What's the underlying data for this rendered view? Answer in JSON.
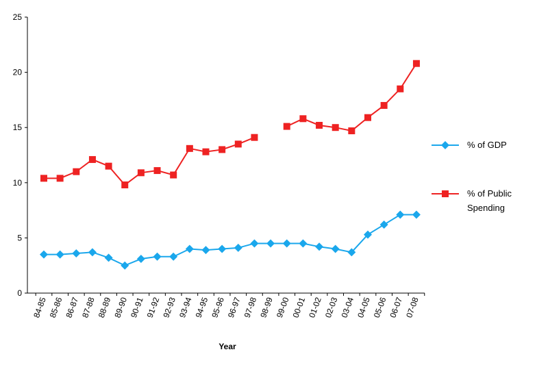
{
  "chart_data": {
    "type": "line",
    "title": "",
    "xlabel": "Year",
    "ylabel": "",
    "ylim": [
      0,
      25
    ],
    "yticks": [
      0,
      5,
      10,
      15,
      20,
      25
    ],
    "grid": false,
    "legend_position": "right",
    "categories": [
      "84-85",
      "85-86",
      "86-87",
      "87-88",
      "88-89",
      "89-90",
      "90-91",
      "91-92",
      "92-93",
      "93-94",
      "94-95",
      "95-96",
      "96-97",
      "97-98",
      "98-99",
      "99-00",
      "00-01",
      "01-02",
      "02-03",
      "03-04",
      "04-05",
      "05-06",
      "06-07",
      "07-08"
    ],
    "series": [
      {
        "name": "% of GDP",
        "color": "#1aa7ec",
        "marker": "diamond",
        "values": [
          3.5,
          3.5,
          3.6,
          3.7,
          3.2,
          2.5,
          3.1,
          3.3,
          3.3,
          4.0,
          3.9,
          4.0,
          4.1,
          4.5,
          4.5,
          4.5,
          4.5,
          4.2,
          4.0,
          3.7,
          5.3,
          6.2,
          7.1,
          7.1
        ]
      },
      {
        "name": "% of Public Spending",
        "color": "#ee2222",
        "marker": "square",
        "values": [
          10.4,
          10.4,
          11.0,
          12.1,
          11.5,
          9.8,
          10.9,
          11.1,
          10.7,
          13.1,
          12.8,
          13.0,
          13.5,
          14.1,
          null,
          15.1,
          15.8,
          15.2,
          15.0,
          14.7,
          15.9,
          17.0,
          18.5,
          20.8
        ]
      }
    ]
  }
}
